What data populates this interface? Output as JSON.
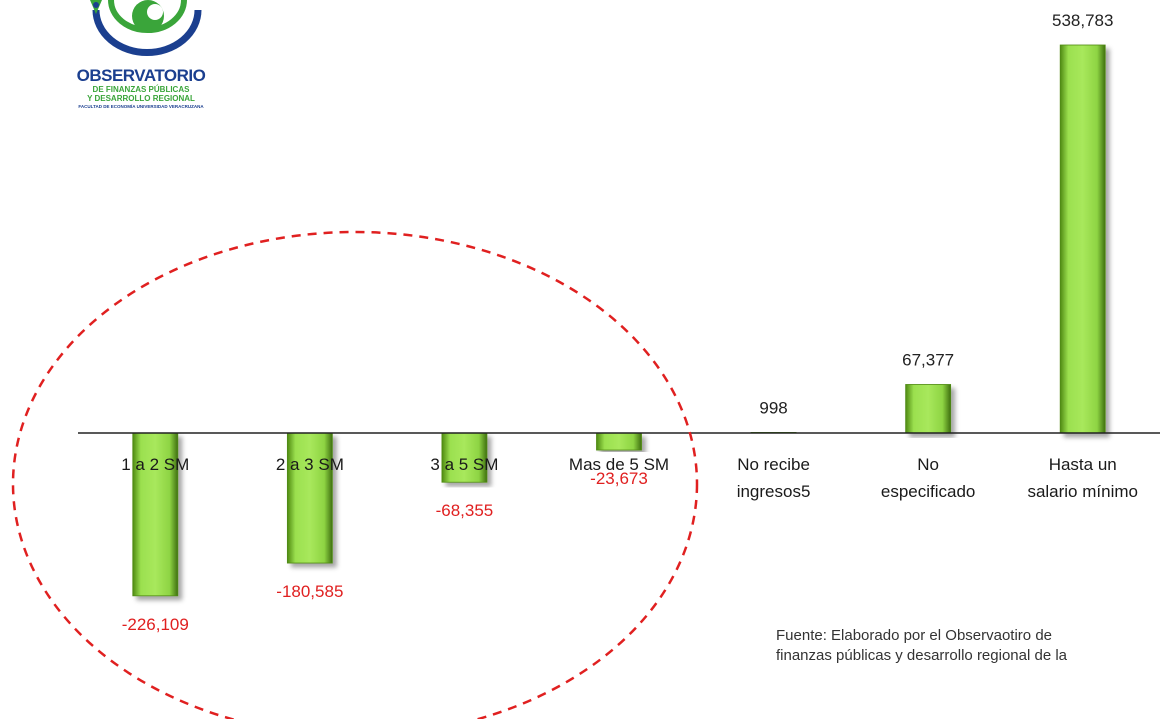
{
  "logo": {
    "title": "OBSERVATORIO",
    "subtitle_line1": "DE FINANZAS PÚBLICAS",
    "subtitle_line2": "Y DESARROLLO REGIONAL",
    "faculty": "FACULTAD DE ECONOMÍA UNIVERSIDAD VERACRUZANA",
    "colors": {
      "blue": "#1b3f8f",
      "green": "#3aa53a"
    }
  },
  "source": {
    "line1": "Fuente: Elaborado por el Observaotiro de",
    "line2": "finanzas públicas y desarrollo regional de la"
  },
  "chart_data": {
    "type": "bar",
    "categories": [
      [
        "1 a 2 SM"
      ],
      [
        "2 a 3 SM"
      ],
      [
        "3 a 5 SM"
      ],
      [
        "Mas de 5 SM"
      ],
      [
        "No recibe",
        "ingresos5"
      ],
      [
        "No",
        "especificado"
      ],
      [
        "Hasta un",
        "salario mínimo"
      ]
    ],
    "values": [
      -226109,
      -180585,
      -68355,
      -23673,
      998,
      67377,
      538783
    ],
    "data_labels": [
      "-226,109",
      "-180,585",
      "-68,355",
      "-23,673",
      "998",
      "67,377",
      "538,783"
    ],
    "title": "",
    "xlabel": "",
    "ylabel": "",
    "ylim": [
      -250000,
      560000
    ],
    "grid": false,
    "legend": "none",
    "colors": {
      "bar": "#8ed443",
      "bar_dark": "#4f8a12",
      "positive_label": "#222222",
      "negative_label": "#e02020",
      "highlight_ellipse": "#e02020",
      "axis": "#222222"
    },
    "highlight": "dashed ellipse around the four negative categories"
  }
}
